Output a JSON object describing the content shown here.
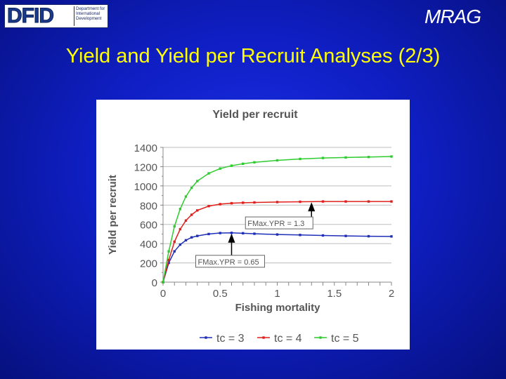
{
  "header": {
    "dfid_logo_text": "DFID",
    "dfid_logo_subtext": [
      "Department for",
      "International",
      "Development"
    ],
    "mrag_logo_text": "MRAG"
  },
  "slide": {
    "title": "Yield and Yield per Recruit Analyses (2/3)"
  },
  "colors": {
    "background": "#0f1fc4",
    "title": "#ffff00",
    "series_tc3": "#1f2fb8",
    "series_tc4": "#e0201a",
    "series_tc5": "#2ecc2e"
  },
  "chart_data": {
    "type": "line",
    "title": "Yield per recruit",
    "xlabel": "Fishing mortality",
    "ylabel": "Yield per recruit",
    "xlim": [
      0,
      2
    ],
    "ylim": [
      0,
      1400
    ],
    "xticks": [
      "0",
      "0.5",
      "1",
      "1.5",
      "2"
    ],
    "yticks": [
      "0",
      "200",
      "400",
      "600",
      "800",
      "1000",
      "1200",
      "1400"
    ],
    "grid": "horizontal",
    "legend_position": "bottom",
    "x": [
      0,
      0.05,
      0.1,
      0.15,
      0.2,
      0.25,
      0.3,
      0.4,
      0.5,
      0.6,
      0.7,
      0.8,
      1.0,
      1.2,
      1.4,
      1.6,
      1.8,
      2.0
    ],
    "series": [
      {
        "name": "tc = 3",
        "values": [
          0,
          200,
          320,
          390,
          435,
          465,
          480,
          500,
          510,
          512,
          508,
          503,
          495,
          490,
          485,
          480,
          477,
          475
        ]
      },
      {
        "name": "tc = 4",
        "values": [
          0,
          230,
          420,
          550,
          640,
          700,
          745,
          790,
          810,
          820,
          825,
          828,
          832,
          835,
          838,
          838,
          838,
          838
        ]
      },
      {
        "name": "tc = 5",
        "values": [
          0,
          320,
          580,
          760,
          890,
          980,
          1050,
          1130,
          1180,
          1210,
          1230,
          1245,
          1265,
          1280,
          1290,
          1295,
          1300,
          1305
        ]
      }
    ],
    "annotations": [
      {
        "text": "FMax.YPR = 1.3",
        "x": 1.3,
        "y": 838
      },
      {
        "text": "FMax.YPR = 0.65",
        "x": 0.6,
        "y": 512
      }
    ]
  }
}
